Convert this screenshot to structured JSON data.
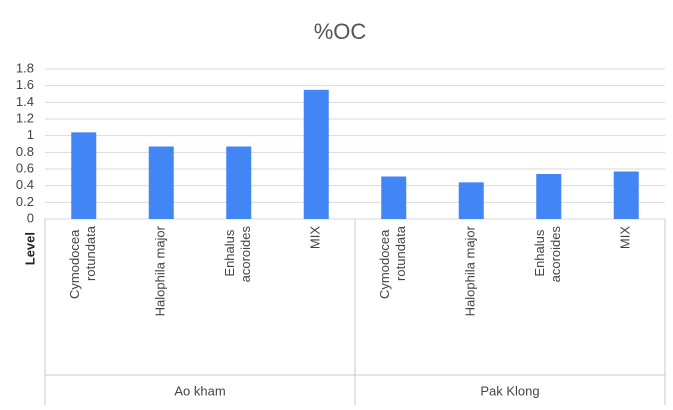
{
  "chart_data": {
    "type": "bar",
    "title": "%OC",
    "y_label": "Level",
    "categories": [
      "Cymodocea rotundata",
      "Halophila major",
      "Enhalus acoroides",
      "MIX",
      "Cymodocea rotundata",
      "Halophila major",
      "Enhalus acoroides",
      "MIX"
    ],
    "groups": [
      "Ao kham",
      "Pak Klong"
    ],
    "values": [
      1.04,
      0.87,
      0.87,
      1.55,
      0.51,
      0.44,
      0.54,
      0.57
    ],
    "color": "#4285f4",
    "ylim": [
      0,
      1.8
    ],
    "yticks": [
      0,
      0.2,
      0.4,
      0.6,
      0.8,
      1,
      1.2,
      1.4,
      1.6,
      1.8
    ],
    "grid": true
  }
}
